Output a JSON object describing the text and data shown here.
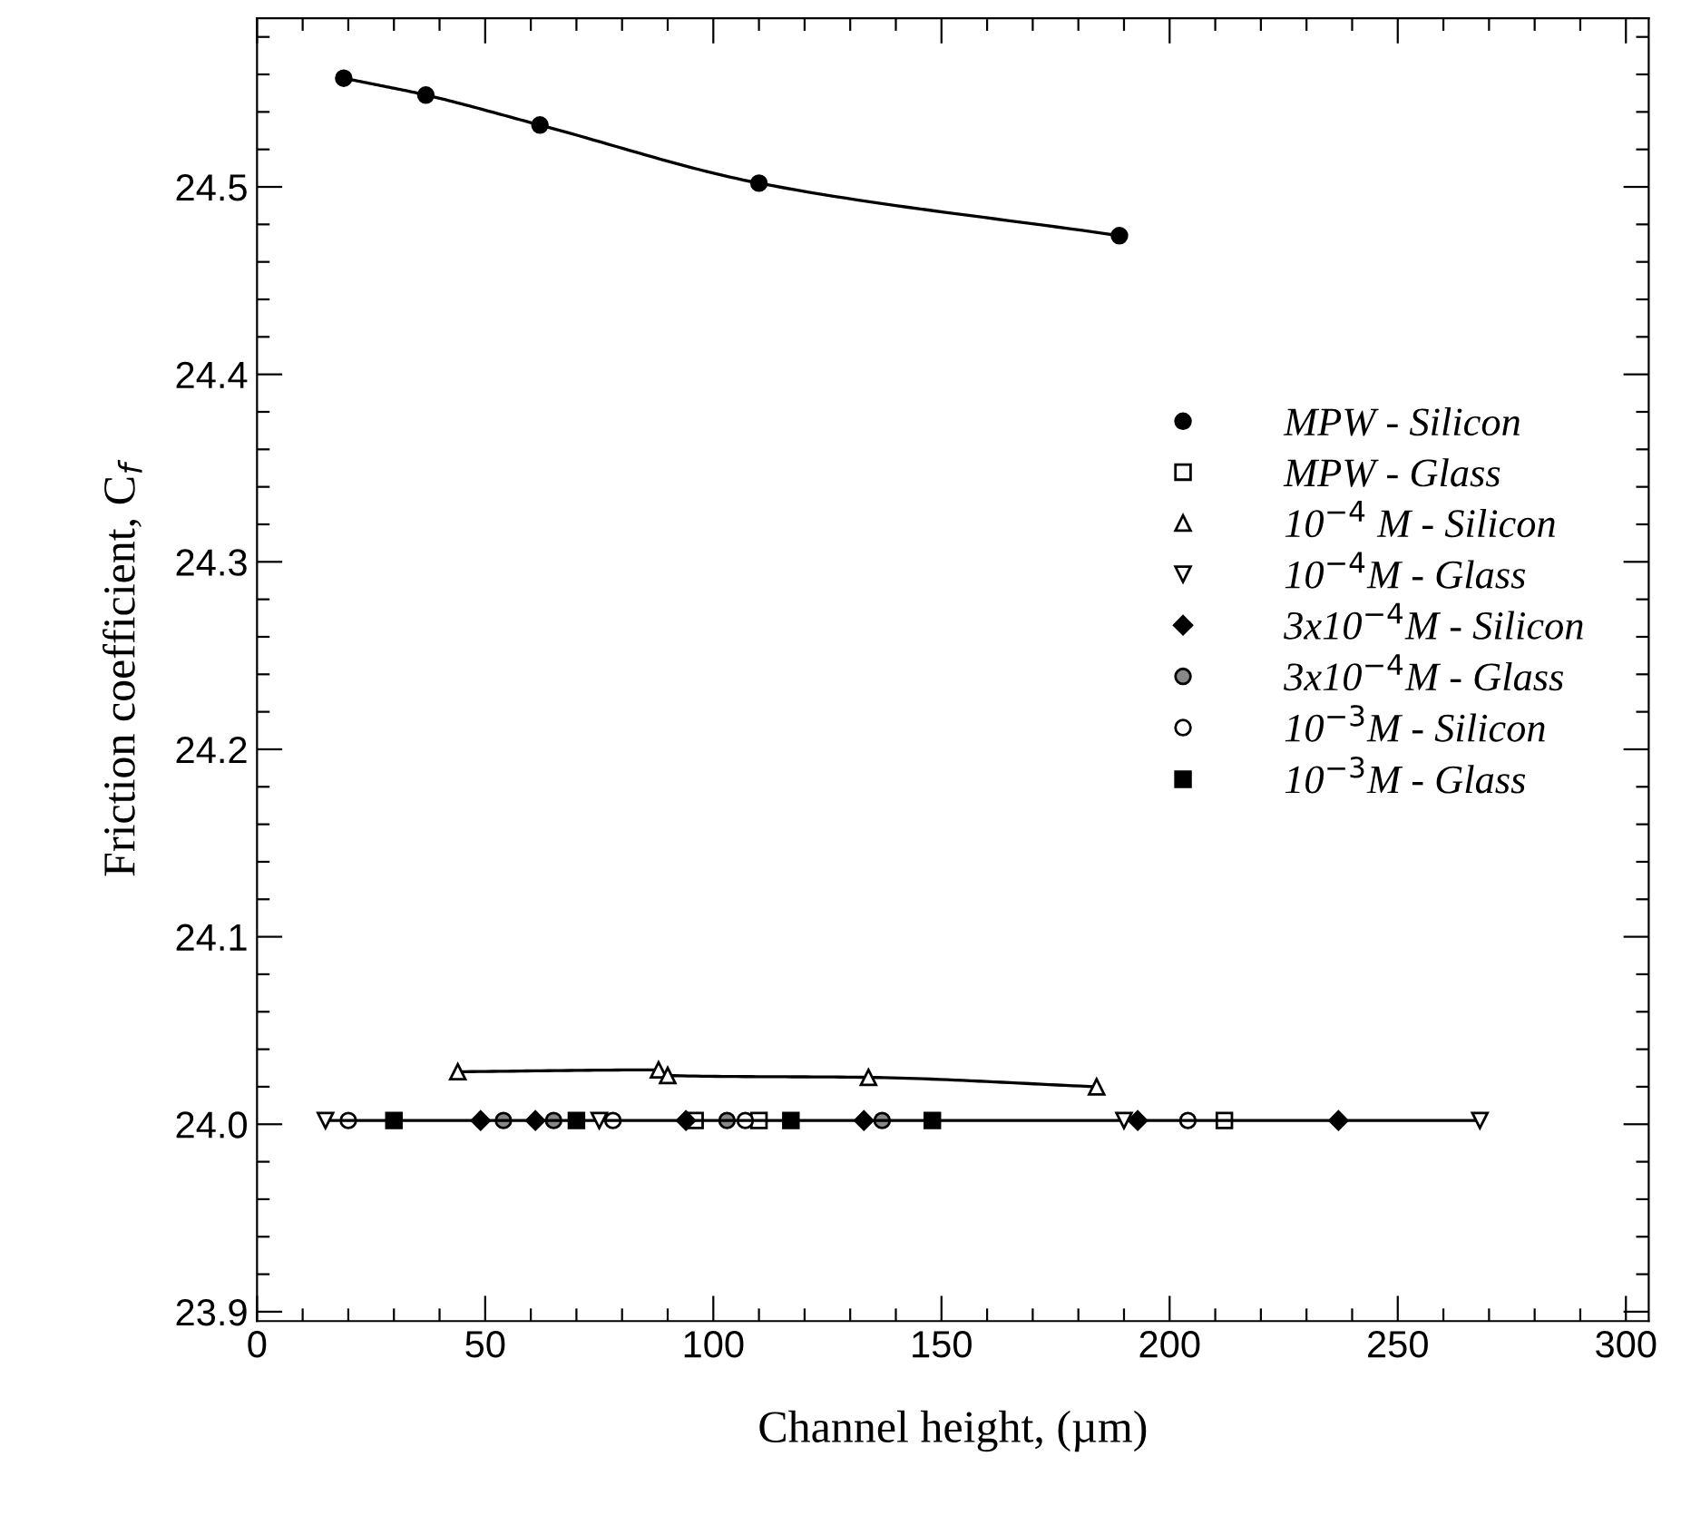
{
  "chart_data": {
    "type": "scatter",
    "xlabel": "Channel height, (µm)",
    "ylabel": "Friction coefficient, C$_{f}$",
    "xlim": [
      0,
      305
    ],
    "ylim": [
      23.895,
      24.59
    ],
    "xticks": [
      0,
      {
        "value": 10,
        "label": null
      },
      {
        "value": 20,
        "label": null
      },
      {
        "value": 30,
        "label": null
      },
      {
        "value": 40,
        "label": null
      },
      50,
      {
        "value": 60,
        "label": null
      },
      {
        "value": 70,
        "label": null
      },
      {
        "value": 80,
        "label": null
      },
      {
        "value": 90,
        "label": null
      },
      100,
      {
        "value": 110,
        "label": null
      },
      {
        "value": 120,
        "label": null
      },
      {
        "value": 130,
        "label": null
      },
      {
        "value": 140,
        "label": null
      },
      150,
      {
        "value": 160,
        "label": null
      },
      {
        "value": 170,
        "label": null
      },
      {
        "value": 180,
        "label": null
      },
      {
        "value": 190,
        "label": null
      },
      200,
      {
        "value": 210,
        "label": null
      },
      {
        "value": 220,
        "label": null
      },
      {
        "value": 230,
        "label": null
      },
      {
        "value": 240,
        "label": null
      },
      250,
      {
        "value": 260,
        "label": null
      },
      {
        "value": 270,
        "label": null
      },
      {
        "value": 280,
        "label": null
      },
      {
        "value": 290,
        "label": null
      },
      300
    ],
    "yticks": [
      {
        "value": 23.9,
        "label": "23.9"
      },
      {
        "value": 23.92,
        "label": null
      },
      {
        "value": 23.94,
        "label": null
      },
      {
        "value": 23.96,
        "label": null
      },
      {
        "value": 23.98,
        "label": null
      },
      {
        "value": 24.0,
        "label": "24.0"
      },
      {
        "value": 24.02,
        "label": null
      },
      {
        "value": 24.04,
        "label": null
      },
      {
        "value": 24.06,
        "label": null
      },
      {
        "value": 24.08,
        "label": null
      },
      24.1,
      {
        "value": 24.12,
        "label": null
      },
      {
        "value": 24.14,
        "label": null
      },
      {
        "value": 24.16,
        "label": null
      },
      {
        "value": 24.18,
        "label": null
      },
      24.2,
      {
        "value": 24.22,
        "label": null
      },
      {
        "value": 24.24,
        "label": null
      },
      {
        "value": 24.26,
        "label": null
      },
      {
        "value": 24.28,
        "label": null
      },
      24.3,
      {
        "value": 24.32,
        "label": null
      },
      {
        "value": 24.34,
        "label": null
      },
      {
        "value": 24.36,
        "label": null
      },
      {
        "value": 24.38,
        "label": null
      },
      24.4,
      {
        "value": 24.42,
        "label": null
      },
      {
        "value": 24.44,
        "label": null
      },
      {
        "value": 24.46,
        "label": null
      },
      {
        "value": 24.48,
        "label": null
      },
      24.5,
      {
        "value": 24.52,
        "label": null
      },
      {
        "value": 24.54,
        "label": null
      },
      {
        "value": 24.56,
        "label": null
      },
      {
        "value": 24.58,
        "label": null
      }
    ],
    "legend": "right",
    "grid": false,
    "line_style": "solid",
    "series": [
      {
        "name": "MPW - Silicon",
        "type": "line",
        "color": "#000000",
        "marker": "circle",
        "x": [
          19,
          37,
          62,
          110,
          189
        ],
        "values": [
          24.558,
          24.549,
          24.533,
          24.502,
          24.474
        ]
      },
      {
        "name": "MPW - Glass",
        "color": "#000000",
        "marker": "square-open",
        "x": [
          96,
          110,
          212
        ],
        "values": [
          24.002,
          24.002,
          24.002
        ]
      },
      {
        "name": "10$^{−4}$ M - Silicon",
        "type": "line",
        "color": "#000000",
        "marker": "triangle-open",
        "x": [
          44,
          88,
          90,
          134,
          184
        ],
        "values": [
          24.028,
          24.029,
          24.026,
          24.025,
          24.02
        ]
      },
      {
        "name": "10$^{−4}$M - Glass",
        "type": "line",
        "color": "#000000",
        "marker": "triangle-down-open",
        "x": [
          15,
          75,
          190,
          268
        ],
        "values": [
          24.002,
          24.002,
          24.002,
          24.002
        ]
      },
      {
        "name": "3x10$^{−4}$M - Silicon",
        "color": "#000000",
        "marker": "diamond",
        "x": [
          49,
          61,
          94,
          133,
          193,
          237
        ],
        "values": [
          24.002,
          24.002,
          24.002,
          24.002,
          24.002,
          24.002
        ]
      },
      {
        "name": "3x10$^{−4}$M - Glass",
        "color": "#000000",
        "marker": "circle-dot",
        "x": [
          54,
          65,
          103,
          137
        ],
        "values": [
          24.002,
          24.002,
          24.002,
          24.002
        ]
      },
      {
        "name": "10$^{−3}$M - Silicon",
        "color": "#000000",
        "marker": "circle-open",
        "x": [
          20,
          78,
          107,
          204
        ],
        "values": [
          24.002,
          24.002,
          24.002,
          24.002
        ]
      },
      {
        "name": "10$^{−3}$M - Glass",
        "color": "#000000",
        "marker": "square",
        "x": [
          30,
          70,
          117,
          148
        ],
        "values": [
          24.002,
          24.002,
          24.002,
          24.002
        ]
      }
    ]
  }
}
